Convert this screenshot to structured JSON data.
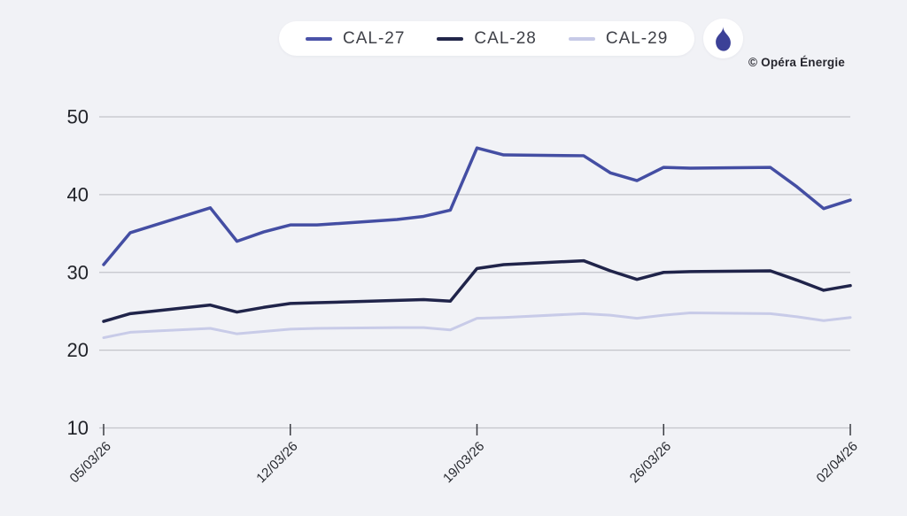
{
  "legend": {
    "items": [
      {
        "label": "CAL-27",
        "color": "#4A52A8"
      },
      {
        "label": "CAL-28",
        "color": "#22264A"
      },
      {
        "label": "CAL-29",
        "color": "#C7CAE7"
      }
    ],
    "icon": {
      "name": "flame-icon",
      "color": "#3C4197",
      "background": "#FFFFFF"
    }
  },
  "credit": "© Opéra Énergie",
  "chart_data": {
    "type": "line",
    "title": "",
    "xlabel": "",
    "ylabel": "",
    "ylim": [
      10,
      50
    ],
    "y_ticks": [
      10,
      20,
      30,
      40,
      50
    ],
    "grid": true,
    "legend_position": "top",
    "x_tick_labels": [
      "05/03/26",
      "12/03/26",
      "19/03/26",
      "26/03/26",
      "02/04/26"
    ],
    "x_tick_days": [
      0,
      7,
      14,
      21,
      28
    ],
    "x_days": [
      0,
      1,
      4,
      5,
      6,
      7,
      8,
      11,
      12,
      13,
      14,
      15,
      18,
      19,
      20,
      21,
      22,
      25,
      26,
      27,
      28
    ],
    "series": [
      {
        "name": "CAL-27",
        "color": "#444EA3",
        "width": 3.5,
        "values": [
          31.0,
          35.1,
          38.3,
          34.0,
          35.2,
          36.1,
          36.1,
          36.8,
          37.2,
          38.0,
          46.0,
          45.1,
          45.0,
          42.8,
          41.8,
          43.5,
          43.4,
          43.5,
          41.0,
          38.2,
          39.3
        ]
      },
      {
        "name": "CAL-28",
        "color": "#20244A",
        "width": 3.5,
        "values": [
          23.7,
          24.7,
          25.8,
          24.9,
          25.5,
          26.0,
          26.1,
          26.4,
          26.5,
          26.3,
          30.5,
          31.0,
          31.5,
          30.2,
          29.1,
          30.0,
          30.1,
          30.2,
          29.0,
          27.7,
          28.3
        ]
      },
      {
        "name": "CAL-29",
        "color": "#C8CBE8",
        "width": 3,
        "values": [
          21.6,
          22.3,
          22.8,
          22.1,
          22.4,
          22.7,
          22.8,
          22.9,
          22.9,
          22.6,
          24.1,
          24.2,
          24.7,
          24.5,
          24.1,
          24.5,
          24.8,
          24.7,
          24.3,
          23.8,
          24.2
        ]
      }
    ],
    "colors": {
      "background": "#F1F2F6",
      "grid": "#C3C4CA",
      "axis_tick": "#3A3C42",
      "y_tick_label": "#212329",
      "x_tick_label": "#26282E"
    }
  }
}
